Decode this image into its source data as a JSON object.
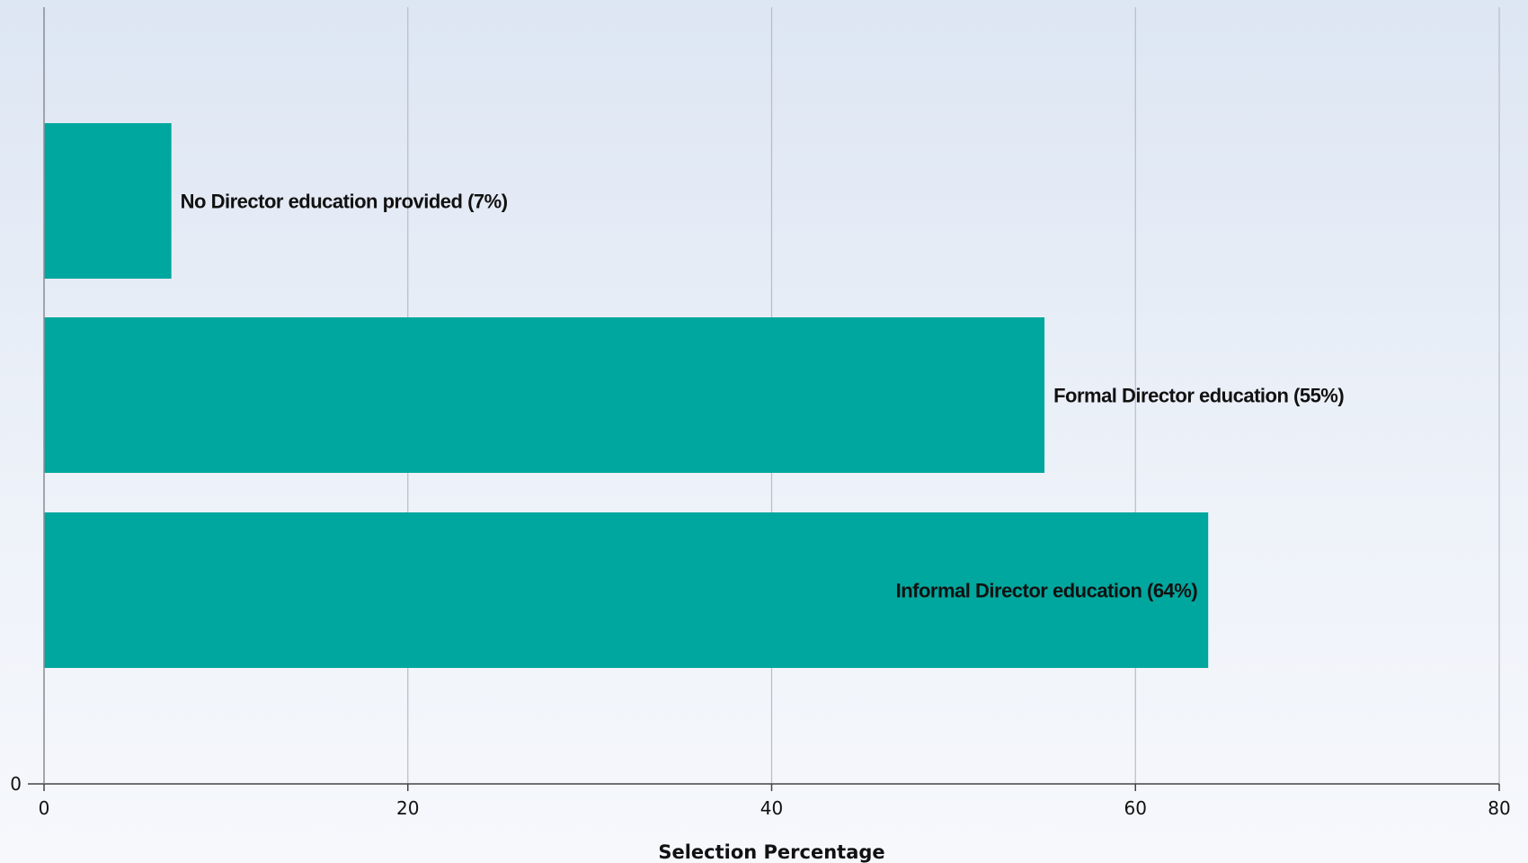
{
  "chart_data": {
    "type": "bar",
    "orientation": "horizontal",
    "categories": [
      "No Director education provided (7%)",
      "Formal Director education (55%)",
      "Informal Director education (64%)"
    ],
    "values": [
      7,
      55,
      64
    ],
    "xlabel": "Selection Percentage",
    "ylabel": "",
    "xlim": [
      0,
      80
    ],
    "xticks": [
      "0",
      "20",
      "40",
      "60",
      "80"
    ],
    "yticks": [
      "0"
    ],
    "grid": "vertical",
    "colors": {
      "bar": "#00a79e",
      "gridline": "#b8bcc4",
      "axis": "#444444",
      "text": "#111111"
    }
  }
}
